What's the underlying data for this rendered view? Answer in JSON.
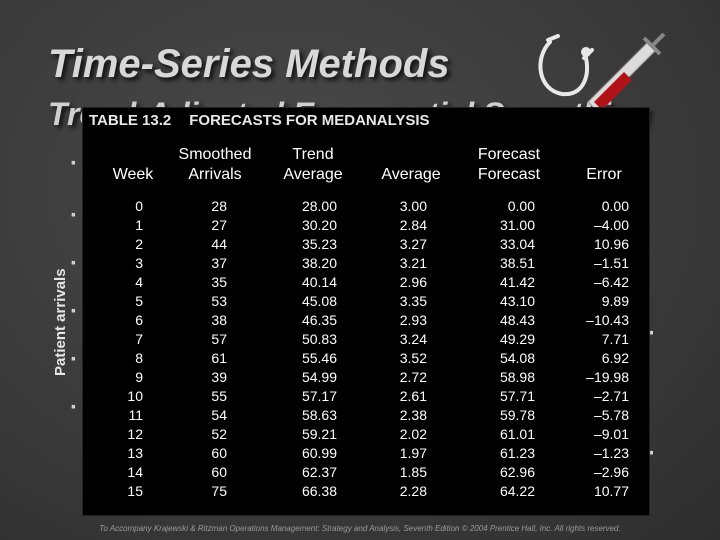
{
  "slide": {
    "title": "Time-Series Methods",
    "subtitle": "Trend-Adjusted Exponential Smoothing",
    "y_axis_label": "Patient arrivals",
    "footer": "To Accompany Krajewski & Ritzman Operations Management: Strategy and Analysis, Seventh Edition © 2004 Prentice Hall, Inc. All rights reserved.",
    "icons": [
      "stethoscope-icon",
      "syringe-icon"
    ]
  },
  "table": {
    "number": "TABLE 13.2",
    "title": "FORECASTS FOR MEDANALYSIS",
    "headers": {
      "week": "Week",
      "smoothed_top": "Smoothed",
      "smoothed_bottom": "Arrivals",
      "trend_top": "Trend",
      "trend_bottom": "Average",
      "average": "Average",
      "forecast_top": "Forecast",
      "forecast_bottom": "Forecast",
      "error": "Error"
    },
    "columns": {
      "week": [
        "0",
        "1",
        "2",
        "3",
        "4",
        "5",
        "6",
        "7",
        "8",
        "9",
        "10",
        "11",
        "12",
        "13",
        "14",
        "15"
      ],
      "arrivals": [
        "28",
        "27",
        "44",
        "37",
        "35",
        "53",
        "38",
        "57",
        "61",
        "39",
        "55",
        "54",
        "52",
        "60",
        "60",
        "75"
      ],
      "smoothed_average": [
        "28.00",
        "30.20",
        "35.23",
        "38.20",
        "40.14",
        "45.08",
        "46.35",
        "50.83",
        "55.46",
        "54.99",
        "57.17",
        "58.63",
        "59.21",
        "60.99",
        "62.37",
        "66.38"
      ],
      "trend_average": [
        "3.00",
        "2.84",
        "3.27",
        "3.21",
        "2.96",
        "3.35",
        "2.93",
        "3.24",
        "3.52",
        "2.72",
        "2.61",
        "2.38",
        "2.02",
        "1.97",
        "1.85",
        "2.28"
      ],
      "forecast": [
        "0.00",
        "31.00",
        "33.04",
        "38.51",
        "41.42",
        "43.10",
        "48.43",
        "49.29",
        "54.08",
        "58.98",
        "57.71",
        "59.78",
        "61.01",
        "61.23",
        "62.96",
        "64.22"
      ],
      "error": [
        "0.00",
        "–4.00",
        "10.96",
        "–1.51",
        "–6.42",
        "9.89",
        "–10.43",
        "7.71",
        "6.92",
        "–19.98",
        "–2.71",
        "–5.78",
        "–9.01",
        "–1.23",
        "–2.96",
        "10.77"
      ]
    }
  }
}
